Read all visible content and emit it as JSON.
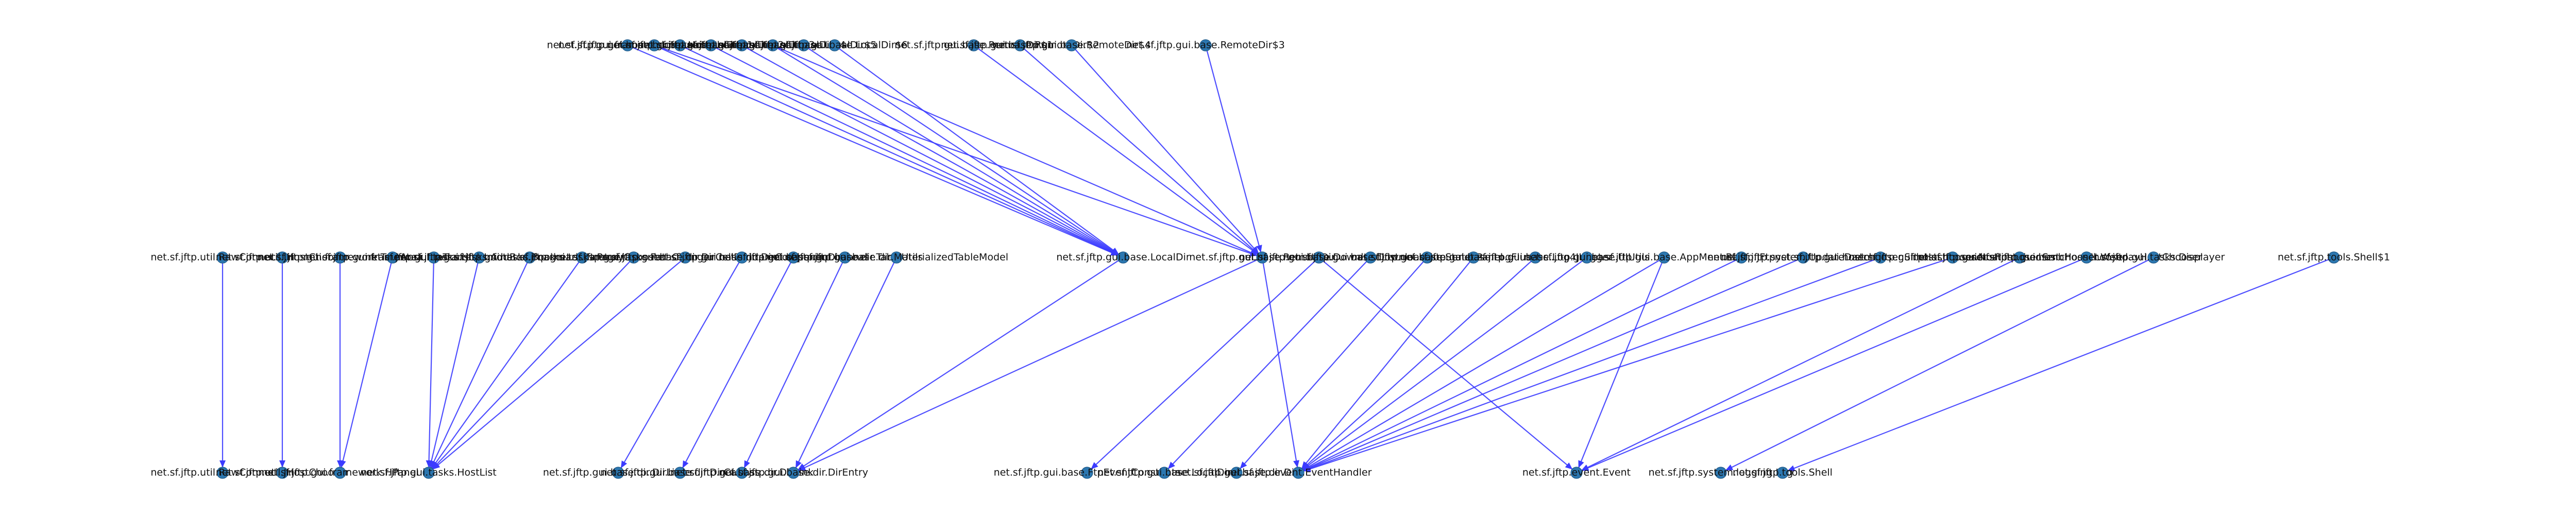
{
  "diagram": {
    "type": "dependency-graph",
    "node_color": "#2c77b0",
    "edge_color": "#3b3bff",
    "rows": {
      "top": [
        "net.sf.jftp.gui.framework.HFrame",
        "net.sf.jftp.gui.hostchooser.HostChooser",
        "net.sf.jftp.gui.base.LocalDir$1",
        "net.sf.jftp.gui.base.LocalDir$2",
        "net.sf.jftp.gui.base.LocalDir$3",
        "net.sf.jftp.gui.base.LocalDir$4",
        "net.sf.jftp.gui.base.LocalDir$5",
        "net.sf.jftp.gui.base.LocalDir$6",
        "net.sf.jftp.gui.base.RemoteDir$1",
        "net.sf.jftp.gui.base.RemoteDir$2",
        "net.sf.jftp.gui.base.RemoteDir$4",
        "net.sf.jftp.gui.base.RemoteDir$3"
      ],
      "middle": [
        "net.sf.jftp.util.RawConnection",
        "net.sf.jftp.util.JHostChooser",
        "net.sf.jftp.gui.framework.TextArea",
        "net.sf.jftp.gui.framework.FileTransfer",
        "net.sf.jftp.gui.tasks.HostInfo",
        "net.sf.jftp.gui.tasks.AddBookmarks",
        "net.sf.jftp.gui.tasks.BookmarkManager",
        "net.sf.jftp.gui.tasks.ProxyChooser",
        "net.sf.jftp.gui.tasks.PathChanger",
        "net.sf.jftp.gui.base.dir.DirCellRenderer",
        "net.sf.jftp.gui.base.dir.DirComponent",
        "net.sf.jftp.gui.base.dir.DirPanel",
        "net.sf.jftp.gui.base.dir.TableUtils",
        "net.sf.jftp.gui.base.dir.MaterializedTableModel",
        "net.sf.jftp.gui.base.LocalDir",
        "net.sf.jftp.gui.base.RemoteDir",
        "net.sf.jftp.gui.base.DownloadList",
        "net.sf.jftp.gui.base.DownloadQueue",
        "net.sf.jftp.gui.base.StatusPanel",
        "net.sf.jftp.gui.base.LogFlusher",
        "net.sf.jftp.gui.base.Log4JLogger",
        "net.sf.jftp.gui.base.UIUtils",
        "net.sf.jftp.gui.base.AppMenuBar",
        "net.sf.jftp.JFtp",
        "net.sf.jftp.system.UpdateDaemon",
        "net.sf.jftp.gui.hostchooser.SftpHostChooser",
        "net.sf.jftp.gui.hostchooser.NfsHostChooser",
        "net.sf.jftp.gui.hostchooser.SmbHostChooser",
        "net.sf.jftp.gui.hostchooser.WebdavHostChooser",
        "net.sf.jftp.gui.tasks.Displayer",
        "net.sf.jftp.tools.Shell$1"
      ],
      "bottom": [
        "net.sf.jftp.util.RawConnection",
        "net.sf.jftp.util.JHostChooser",
        "net.sf.jftp.gui.framework.HPanel",
        "net.sf.jftp.gui.tasks.HostList",
        "net.sf.jftp.gui.base.dir.DirLister",
        "net.sf.jftp.gui.base.dir.DirCanvas",
        "net.sf.jftp.gui.base.dir.DirLink",
        "net.sf.jftp.gui.base.dir.DirEntry",
        "net.sf.jftp.gui.base.FtpEventConstants",
        "net.sf.jftp.gui.base.LocalDir",
        "net.sf.jftp.gui.base.dir.Dir",
        "net.sf.jftp.event.EventHandler",
        "net.sf.jftp.event.Event",
        "net.sf.jftp.system.logging.Log",
        "net.sf.jftp.tools.Shell"
      ]
    },
    "edges": [
      [
        "top",
        0,
        "middle",
        14
      ],
      [
        "top",
        1,
        "middle",
        14
      ],
      [
        "top",
        2,
        "middle",
        14
      ],
      [
        "top",
        3,
        "middle",
        14
      ],
      [
        "top",
        4,
        "middle",
        14
      ],
      [
        "top",
        5,
        "middle",
        14
      ],
      [
        "top",
        6,
        "middle",
        14
      ],
      [
        "top",
        7,
        "middle",
        14
      ],
      [
        "top",
        8,
        "middle",
        15
      ],
      [
        "top",
        9,
        "middle",
        15
      ],
      [
        "top",
        10,
        "middle",
        15
      ],
      [
        "top",
        11,
        "middle",
        15
      ],
      [
        "top",
        1,
        "middle",
        15
      ],
      [
        "top",
        5,
        "middle",
        15
      ],
      [
        "middle",
        0,
        "bottom",
        0
      ],
      [
        "middle",
        1,
        "bottom",
        1
      ],
      [
        "middle",
        2,
        "bottom",
        2
      ],
      [
        "middle",
        3,
        "bottom",
        2
      ],
      [
        "middle",
        4,
        "bottom",
        3
      ],
      [
        "middle",
        5,
        "bottom",
        3
      ],
      [
        "middle",
        6,
        "bottom",
        3
      ],
      [
        "middle",
        7,
        "bottom",
        3
      ],
      [
        "middle",
        8,
        "bottom",
        3
      ],
      [
        "middle",
        9,
        "bottom",
        3
      ],
      [
        "middle",
        10,
        "bottom",
        4
      ],
      [
        "middle",
        11,
        "bottom",
        5
      ],
      [
        "middle",
        12,
        "bottom",
        6
      ],
      [
        "middle",
        13,
        "bottom",
        7
      ],
      [
        "middle",
        14,
        "bottom",
        7
      ],
      [
        "middle",
        15,
        "bottom",
        7
      ],
      [
        "middle",
        16,
        "bottom",
        8
      ],
      [
        "middle",
        17,
        "bottom",
        9
      ],
      [
        "middle",
        18,
        "bottom",
        10
      ],
      [
        "middle",
        19,
        "bottom",
        11
      ],
      [
        "middle",
        20,
        "bottom",
        11
      ],
      [
        "middle",
        21,
        "bottom",
        11
      ],
      [
        "middle",
        22,
        "bottom",
        11
      ],
      [
        "middle",
        23,
        "bottom",
        11
      ],
      [
        "middle",
        24,
        "bottom",
        11
      ],
      [
        "middle",
        25,
        "bottom",
        11
      ],
      [
        "middle",
        26,
        "bottom",
        11
      ],
      [
        "middle",
        27,
        "bottom",
        12
      ],
      [
        "middle",
        28,
        "bottom",
        12
      ],
      [
        "middle",
        29,
        "bottom",
        13
      ],
      [
        "middle",
        30,
        "bottom",
        14
      ],
      [
        "middle",
        16,
        "bottom",
        12
      ],
      [
        "middle",
        15,
        "bottom",
        11
      ],
      [
        "middle",
        22,
        "bottom",
        12
      ]
    ]
  }
}
